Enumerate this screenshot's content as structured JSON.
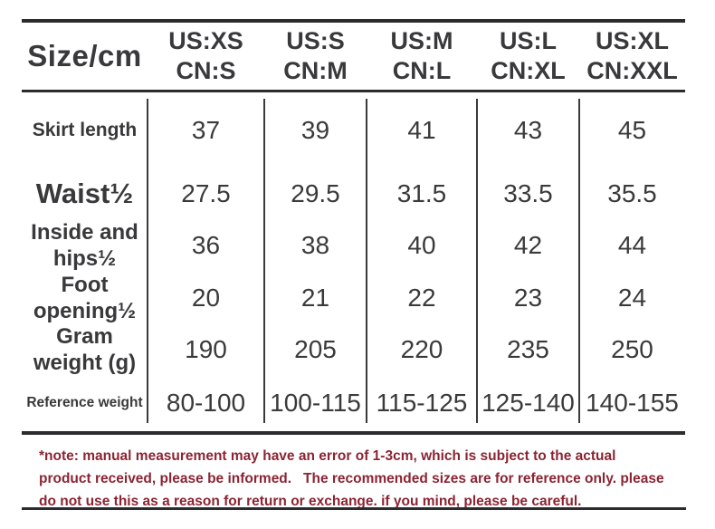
{
  "chart_data": {
    "type": "table",
    "title": "Size/cm",
    "columns": [
      {
        "us": "US:XS",
        "cn": "CN:S"
      },
      {
        "us": "US:S",
        "cn": "CN:M"
      },
      {
        "us": "US:M",
        "cn": "CN:L"
      },
      {
        "us": "US:L",
        "cn": "CN:XL"
      },
      {
        "us": "US:XL",
        "cn": "CN:XXL"
      }
    ],
    "rows": [
      {
        "label": "Skirt length",
        "values": [
          "37",
          "39",
          "41",
          "43",
          "45"
        ]
      },
      {
        "label": "Waist½",
        "values": [
          "27.5",
          "29.5",
          "31.5",
          "33.5",
          "35.5"
        ]
      },
      {
        "label": "Inside and hips½",
        "values": [
          "36",
          "38",
          "40",
          "42",
          "44"
        ]
      },
      {
        "label": "Foot opening½",
        "values": [
          "20",
          "21",
          "22",
          "23",
          "24"
        ]
      },
      {
        "label": "Gram weight (g)",
        "values": [
          "190",
          "205",
          "220",
          "235",
          "250"
        ]
      },
      {
        "label": "Reference weight",
        "values": [
          "80-100",
          "100-115",
          "115-125",
          "125-140",
          "140-155"
        ]
      }
    ]
  },
  "note": {
    "lines": [
      "*note: manual measurement may have an error of 1-3cm, which is subject to the actual",
      "product received, please be informed.   The recommended sizes are for reference only. please",
      "do not use this as a reason for return or exchange. if you mind, please be careful."
    ]
  },
  "colors": {
    "text": "#3a3a3c",
    "rule": "#2c2c2e",
    "note_red": "#8b2433",
    "background": "#ffffff"
  }
}
